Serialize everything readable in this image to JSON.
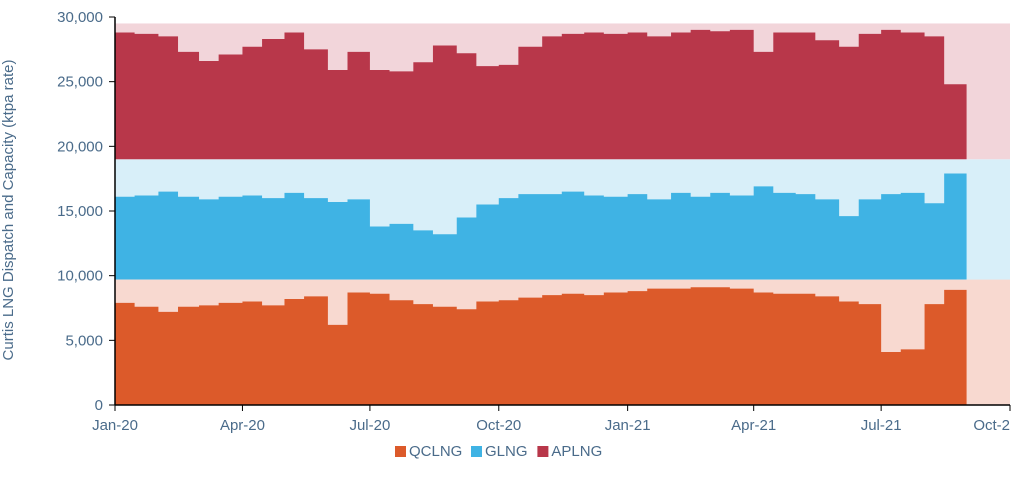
{
  "chart_data": {
    "type": "area",
    "title": "",
    "ylabel": "Curtis LNG Dispatch and Capacity (ktpa rate)",
    "xlabel": "",
    "ylim": [
      0,
      30000
    ],
    "yticks": [
      0,
      5000,
      10000,
      15000,
      20000,
      25000,
      30000
    ],
    "ytick_labels": [
      "0",
      "5,000",
      "10,000",
      "15,000",
      "20,000",
      "25,000",
      "30,000"
    ],
    "xlim": [
      "2020-01-01",
      "2021-10-01"
    ],
    "xticks": [
      "2020-01-01",
      "2020-04-01",
      "2020-07-01",
      "2020-10-01",
      "2021-01-01",
      "2021-04-01",
      "2021-07-01",
      "2021-10-01"
    ],
    "xtick_labels": [
      "Jan-20",
      "Apr-20",
      "Jul-20",
      "Oct-20",
      "Jan-21",
      "Apr-21",
      "Jul-21",
      "Oct-2"
    ],
    "stacked": true,
    "grid": false,
    "legend_position": "bottom-center",
    "x": [
      "2020-01-01",
      "2020-01-15",
      "2020-02-01",
      "2020-02-15",
      "2020-03-01",
      "2020-03-15",
      "2020-04-01",
      "2020-04-15",
      "2020-05-01",
      "2020-05-15",
      "2020-06-01",
      "2020-06-15",
      "2020-07-01",
      "2020-07-15",
      "2020-08-01",
      "2020-08-15",
      "2020-09-01",
      "2020-09-15",
      "2020-10-01",
      "2020-10-15",
      "2020-11-01",
      "2020-11-15",
      "2020-12-01",
      "2020-12-15",
      "2021-01-01",
      "2021-01-15",
      "2021-02-01",
      "2021-02-15",
      "2021-03-01",
      "2021-03-15",
      "2021-04-01",
      "2021-04-15",
      "2021-05-01",
      "2021-05-15",
      "2021-06-01",
      "2021-06-15",
      "2021-07-01",
      "2021-07-15",
      "2021-08-01",
      "2021-08-15",
      "2021-08-31"
    ],
    "series": [
      {
        "name": "QCLNG",
        "color": "#dc5a2a",
        "capacity_color": "#f8d9d0",
        "capacity": 9700,
        "values": [
          7900,
          7600,
          7200,
          7600,
          7700,
          7900,
          8000,
          7700,
          8200,
          8400,
          6200,
          8700,
          8600,
          8100,
          7800,
          7600,
          7400,
          8000,
          8100,
          8300,
          8500,
          8600,
          8500,
          8700,
          8800,
          9000,
          9000,
          9100,
          9100,
          9000,
          8700,
          8600,
          8600,
          8400,
          8000,
          7800,
          4100,
          4300,
          7800,
          8900,
          9000
        ]
      },
      {
        "name": "GLNG",
        "color": "#3fb3e4",
        "capacity_color": "#d8eff9",
        "capacity": 9300,
        "values": [
          6400,
          6500,
          6800,
          6400,
          6200,
          6400,
          6500,
          6300,
          6700,
          6300,
          6000,
          6200,
          4100,
          4300,
          3800,
          3500,
          4800,
          5800,
          6300,
          6600,
          6600,
          6800,
          6500,
          6400,
          6600,
          6200,
          6700,
          6400,
          6700,
          6500,
          7200,
          6700,
          6600,
          6200,
          4900,
          6200,
          6600,
          6700,
          5900,
          8200,
          8300
        ]
      },
      {
        "name": "APLNG",
        "color": "#b8374a",
        "capacity_color": "#f2d5da",
        "capacity": 10500,
        "values": [
          9800,
          9700,
          9500,
          8300,
          7600,
          8100,
          8700,
          9300,
          9800,
          8500,
          6900,
          8300,
          6900,
          6800,
          7500,
          8800,
          8200,
          7200,
          7300,
          8700,
          9500,
          9700,
          9800,
          9700,
          9800,
          9500,
          9800,
          10000,
          9900,
          10000,
          8300,
          9800,
          9800,
          9200,
          8700,
          9700,
          10000,
          9800,
          9500,
          5800,
          5700
        ]
      }
    ]
  },
  "legend": {
    "items": [
      {
        "label": "QCLNG",
        "color": "#dc5a2a"
      },
      {
        "label": "GLNG",
        "color": "#3fb3e4"
      },
      {
        "label": "APLNG",
        "color": "#b8374a"
      }
    ]
  }
}
